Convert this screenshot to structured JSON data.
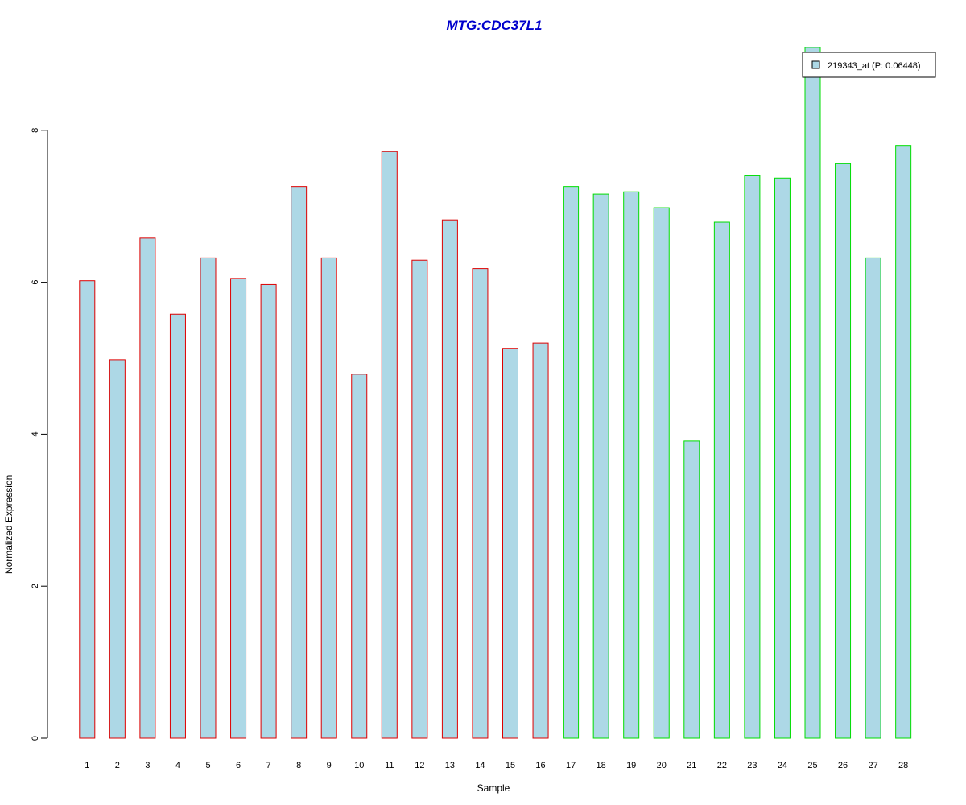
{
  "chart_data": {
    "type": "bar",
    "title": "MTG:CDC37L1",
    "xlabel": "Sample",
    "ylabel": "Normalized Expression",
    "categories": [
      "1",
      "2",
      "3",
      "4",
      "5",
      "6",
      "7",
      "8",
      "9",
      "10",
      "11",
      "12",
      "13",
      "14",
      "15",
      "16",
      "17",
      "18",
      "19",
      "20",
      "21",
      "22",
      "23",
      "24",
      "25",
      "26",
      "27",
      "28"
    ],
    "series": [
      {
        "name": "219343_at (P: 0.06448)",
        "values": [
          6.02,
          4.98,
          6.58,
          5.58,
          6.32,
          6.05,
          5.97,
          7.26,
          6.32,
          4.79,
          7.72,
          6.29,
          6.82,
          6.18,
          5.13,
          5.2,
          7.26,
          7.16,
          7.19,
          6.98,
          3.91,
          6.79,
          7.4,
          7.37,
          9.09,
          7.56,
          6.32,
          7.8
        ]
      }
    ],
    "group_colors": [
      "#dd0000",
      "#dd0000",
      "#dd0000",
      "#dd0000",
      "#dd0000",
      "#dd0000",
      "#dd0000",
      "#dd0000",
      "#dd0000",
      "#dd0000",
      "#dd0000",
      "#dd0000",
      "#dd0000",
      "#dd0000",
      "#dd0000",
      "#dd0000",
      "#00dd00",
      "#00dd00",
      "#00dd00",
      "#00dd00",
      "#00dd00",
      "#00dd00",
      "#00dd00",
      "#00dd00",
      "#00dd00",
      "#00dd00",
      "#00dd00",
      "#00dd00"
    ],
    "bar_fill": "#add8e6",
    "title_color": "#0000cc",
    "yticks": [
      0,
      2,
      4,
      6,
      8
    ],
    "ylim": [
      0,
      9.1
    ],
    "legend_position": "top-right",
    "grid": false
  }
}
